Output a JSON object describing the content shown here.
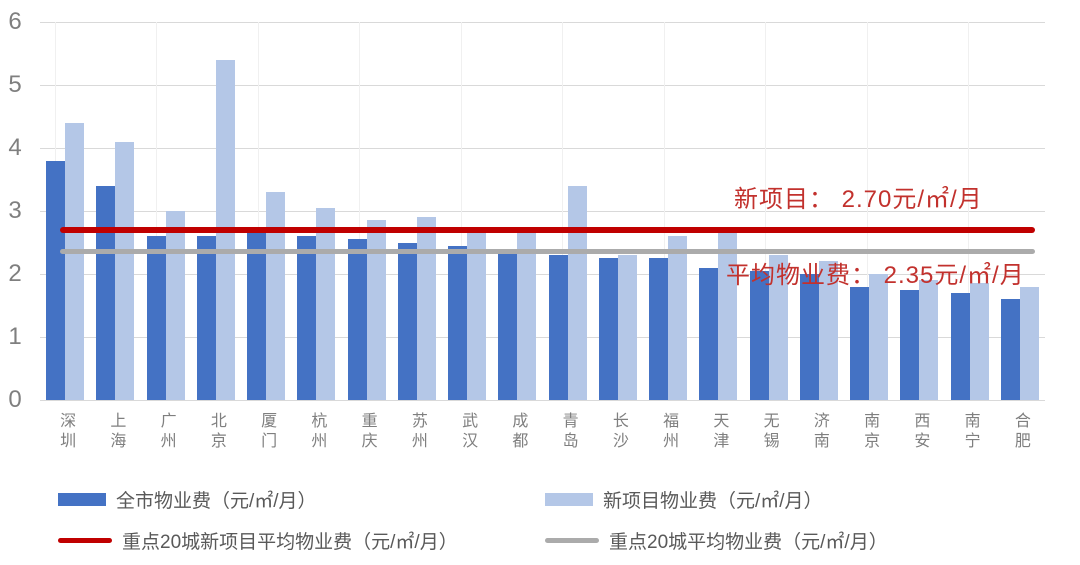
{
  "chart_data": {
    "type": "bar",
    "title": "",
    "categories": [
      "深圳",
      "上海",
      "广州",
      "北京",
      "厦门",
      "杭州",
      "重庆",
      "苏州",
      "武汉",
      "成都",
      "青岛",
      "长沙",
      "福州",
      "天津",
      "无锡",
      "济南",
      "南京",
      "西安",
      "南宁",
      "合肥"
    ],
    "series": [
      {
        "name": "全市物业费（元/㎡/月）",
        "color": "#4472c4",
        "values": [
          3.8,
          3.4,
          2.6,
          2.6,
          2.65,
          2.6,
          2.55,
          2.5,
          2.45,
          2.4,
          2.3,
          2.25,
          2.25,
          2.1,
          2.05,
          2.0,
          1.8,
          1.75,
          1.7,
          1.6
        ]
      },
      {
        "name": "新项目物业费（元/㎡/月）",
        "color": "#b4c7e7",
        "values": [
          4.4,
          4.1,
          3.0,
          5.4,
          3.3,
          3.05,
          2.85,
          2.9,
          2.65,
          2.75,
          3.4,
          2.3,
          2.6,
          2.65,
          2.3,
          2.2,
          2.0,
          1.9,
          1.85,
          1.8
        ]
      }
    ],
    "reference_lines": [
      {
        "name": "重点20城新项目平均物业费（元/㎡/月）",
        "value": 2.7,
        "color": "#c00000",
        "thickness": 6
      },
      {
        "name": "重点20城平均物业费（元/㎡/月）",
        "value": 2.35,
        "color": "#ababab",
        "thickness": 5
      }
    ],
    "annotations": [
      {
        "text": "新项目： 2.70元/㎡/月"
      },
      {
        "text": "平均物业费： 2.35元/㎡/月"
      }
    ],
    "xlabel": "",
    "ylabel": "",
    "ylim": [
      0,
      6
    ],
    "yticks": [
      0,
      1,
      2,
      3,
      4,
      5,
      6
    ],
    "grid": true,
    "legend_position": "bottom",
    "colors": {
      "annotation_text": "#c2312d",
      "gridline": "#d9d9d9",
      "axis_label": "#7f7f7f",
      "legend_text": "#595959",
      "background": "#ffffff"
    }
  }
}
